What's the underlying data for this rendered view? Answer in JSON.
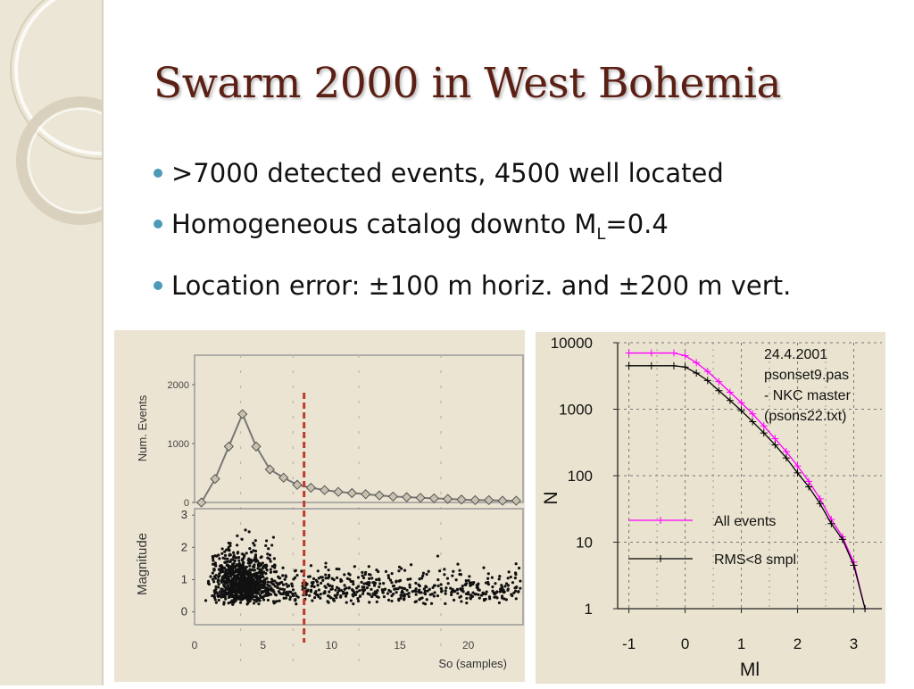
{
  "slide": {
    "title": "Swarm 2000 in West Bohemia",
    "bullets": [
      {
        "text": ">7000 detected events, 4500 well located"
      },
      {
        "text_pre": "Homogeneous catalog downto M",
        "subscript": "L",
        "text_post": "=0.4"
      },
      {
        "text": "Location error: ±100 m horiz. and ±200 m vert."
      }
    ]
  },
  "colors": {
    "title": "#5b1f14",
    "bullet_dot": "#4b9ab8",
    "side_band": "#ece6d6",
    "all_events": "#ff00ff",
    "rms": "#000000",
    "marker_line": "#c0392b"
  },
  "chart_data": [
    {
      "type": "scatter",
      "panels": [
        {
          "ylabel": "Num. Events",
          "yticks": [
            "2000",
            "1000",
            "0"
          ],
          "ylim": [
            0,
            2500
          ],
          "series_type": "line",
          "x": [
            0.5,
            1.5,
            2.5,
            3.5,
            4.5,
            5.5,
            6.5,
            7.5,
            8.5,
            9.5,
            10.5,
            11.5,
            12.5,
            13.5,
            14.5,
            15.5,
            16.5,
            17.5,
            18.5,
            19.5,
            20.5,
            21.5,
            22.5,
            23.5
          ],
          "y": [
            0,
            400,
            950,
            1500,
            950,
            560,
            420,
            300,
            250,
            210,
            180,
            160,
            140,
            120,
            100,
            90,
            80,
            70,
            60,
            50,
            40,
            40,
            30,
            30
          ]
        },
        {
          "ylabel": "Magnitude",
          "yticks": [
            "3",
            "2",
            "1",
            "0"
          ],
          "ylim": [
            -0.4,
            3.2
          ],
          "series_type": "scatter",
          "description_points": "dense cloud of events"
        }
      ],
      "xlabel": "So (samples)",
      "xticks": [
        "0",
        "5",
        "10",
        "15",
        "20"
      ],
      "xlim": [
        0,
        24
      ],
      "marker_x": 8
    },
    {
      "type": "line",
      "xlabel": "Ml",
      "ylabel": "N",
      "xticks": [
        "-1",
        "0",
        "1",
        "2",
        "3"
      ],
      "yticks": [
        "10000",
        "1000",
        "100",
        "10",
        "1"
      ],
      "xlim": [
        -1.2,
        3.5
      ],
      "ylim": [
        1,
        10000
      ],
      "yscale": "log",
      "grid": true,
      "annotation": [
        "24.4.2001",
        "psonset9.pas",
        "- NKC master",
        "(psons22.txt)"
      ],
      "series": [
        {
          "name": "All events",
          "color": "#ff00ff",
          "x": [
            -1.0,
            -0.6,
            -0.2,
            0.0,
            0.2,
            0.4,
            0.6,
            0.8,
            1.0,
            1.2,
            1.4,
            1.6,
            1.8,
            2.0,
            2.2,
            2.4,
            2.6,
            2.8,
            3.0,
            3.2
          ],
          "y": [
            7000,
            7000,
            7000,
            6400,
            5000,
            3700,
            2600,
            1800,
            1250,
            850,
            560,
            360,
            230,
            140,
            82,
            45,
            22,
            12,
            5,
            1
          ]
        },
        {
          "name": "RMS<8 smpl",
          "color": "#000000",
          "x": [
            -1.0,
            -0.6,
            -0.2,
            0.0,
            0.2,
            0.4,
            0.6,
            0.8,
            1.0,
            1.2,
            1.4,
            1.6,
            1.8,
            2.0,
            2.2,
            2.4,
            2.6,
            2.8,
            3.0,
            3.2
          ],
          "y": [
            4500,
            4500,
            4500,
            4300,
            3500,
            2700,
            1900,
            1350,
            950,
            650,
            440,
            290,
            185,
            110,
            68,
            38,
            19,
            11,
            4.5,
            1
          ]
        }
      ]
    }
  ]
}
